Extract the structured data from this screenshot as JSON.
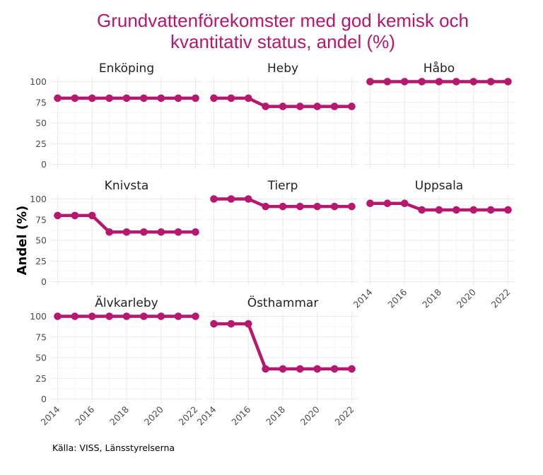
{
  "chart_data": {
    "type": "line",
    "title": "Grundvattenförekomster med god kemisk och kvantitativ status, andel (%)",
    "title_lines": [
      "Grundvattenförekomster med god kemisk och",
      "kvantitativ status, andel (%)"
    ],
    "xlabel": "",
    "ylabel": "Andel (%)",
    "caption": "Källa: VISS, Länsstyrelserna",
    "x": [
      2014,
      2015,
      2016,
      2017,
      2018,
      2019,
      2020,
      2021,
      2022
    ],
    "x_ticks": [
      2014,
      2016,
      2018,
      2020,
      2022
    ],
    "x_tick_labels": [
      "2014",
      "2016",
      "2018",
      "2020",
      "2022"
    ],
    "y_ticks": [
      0,
      25,
      50,
      75,
      100
    ],
    "y_tick_labels": [
      "0",
      "25",
      "50",
      "75",
      "100"
    ],
    "ylim": [
      0,
      100
    ],
    "xlim": [
      2014,
      2022
    ],
    "grid": true,
    "legend": "none",
    "series_color": "#b5186c",
    "facet_layout": "3 columns",
    "facets": [
      {
        "name": "Enköping",
        "values": [
          80,
          80,
          80,
          80,
          80,
          80,
          80,
          80,
          80
        ]
      },
      {
        "name": "Heby",
        "values": [
          80,
          80,
          80,
          70,
          70,
          70,
          70,
          70,
          70
        ]
      },
      {
        "name": "Håbo",
        "values": [
          100,
          100,
          100,
          100,
          100,
          100,
          100,
          100,
          100
        ]
      },
      {
        "name": "Knivsta",
        "values": [
          80,
          80,
          80,
          60,
          60,
          60,
          60,
          60,
          60
        ]
      },
      {
        "name": "Tierp",
        "values": [
          100,
          100,
          100,
          90.9,
          90.9,
          90.9,
          90.9,
          90.9,
          90.9
        ]
      },
      {
        "name": "Uppsala",
        "values": [
          94.7,
          94.7,
          94.7,
          86.8,
          86.8,
          86.8,
          86.8,
          86.8,
          86.8
        ]
      },
      {
        "name": "Älvkarleby",
        "values": [
          100,
          100,
          100,
          100,
          100,
          100,
          100,
          100,
          100
        ]
      },
      {
        "name": "Östhammar",
        "values": [
          90.9,
          90.9,
          90.9,
          36.4,
          36.4,
          36.4,
          36.4,
          36.4,
          36.4
        ]
      }
    ]
  }
}
